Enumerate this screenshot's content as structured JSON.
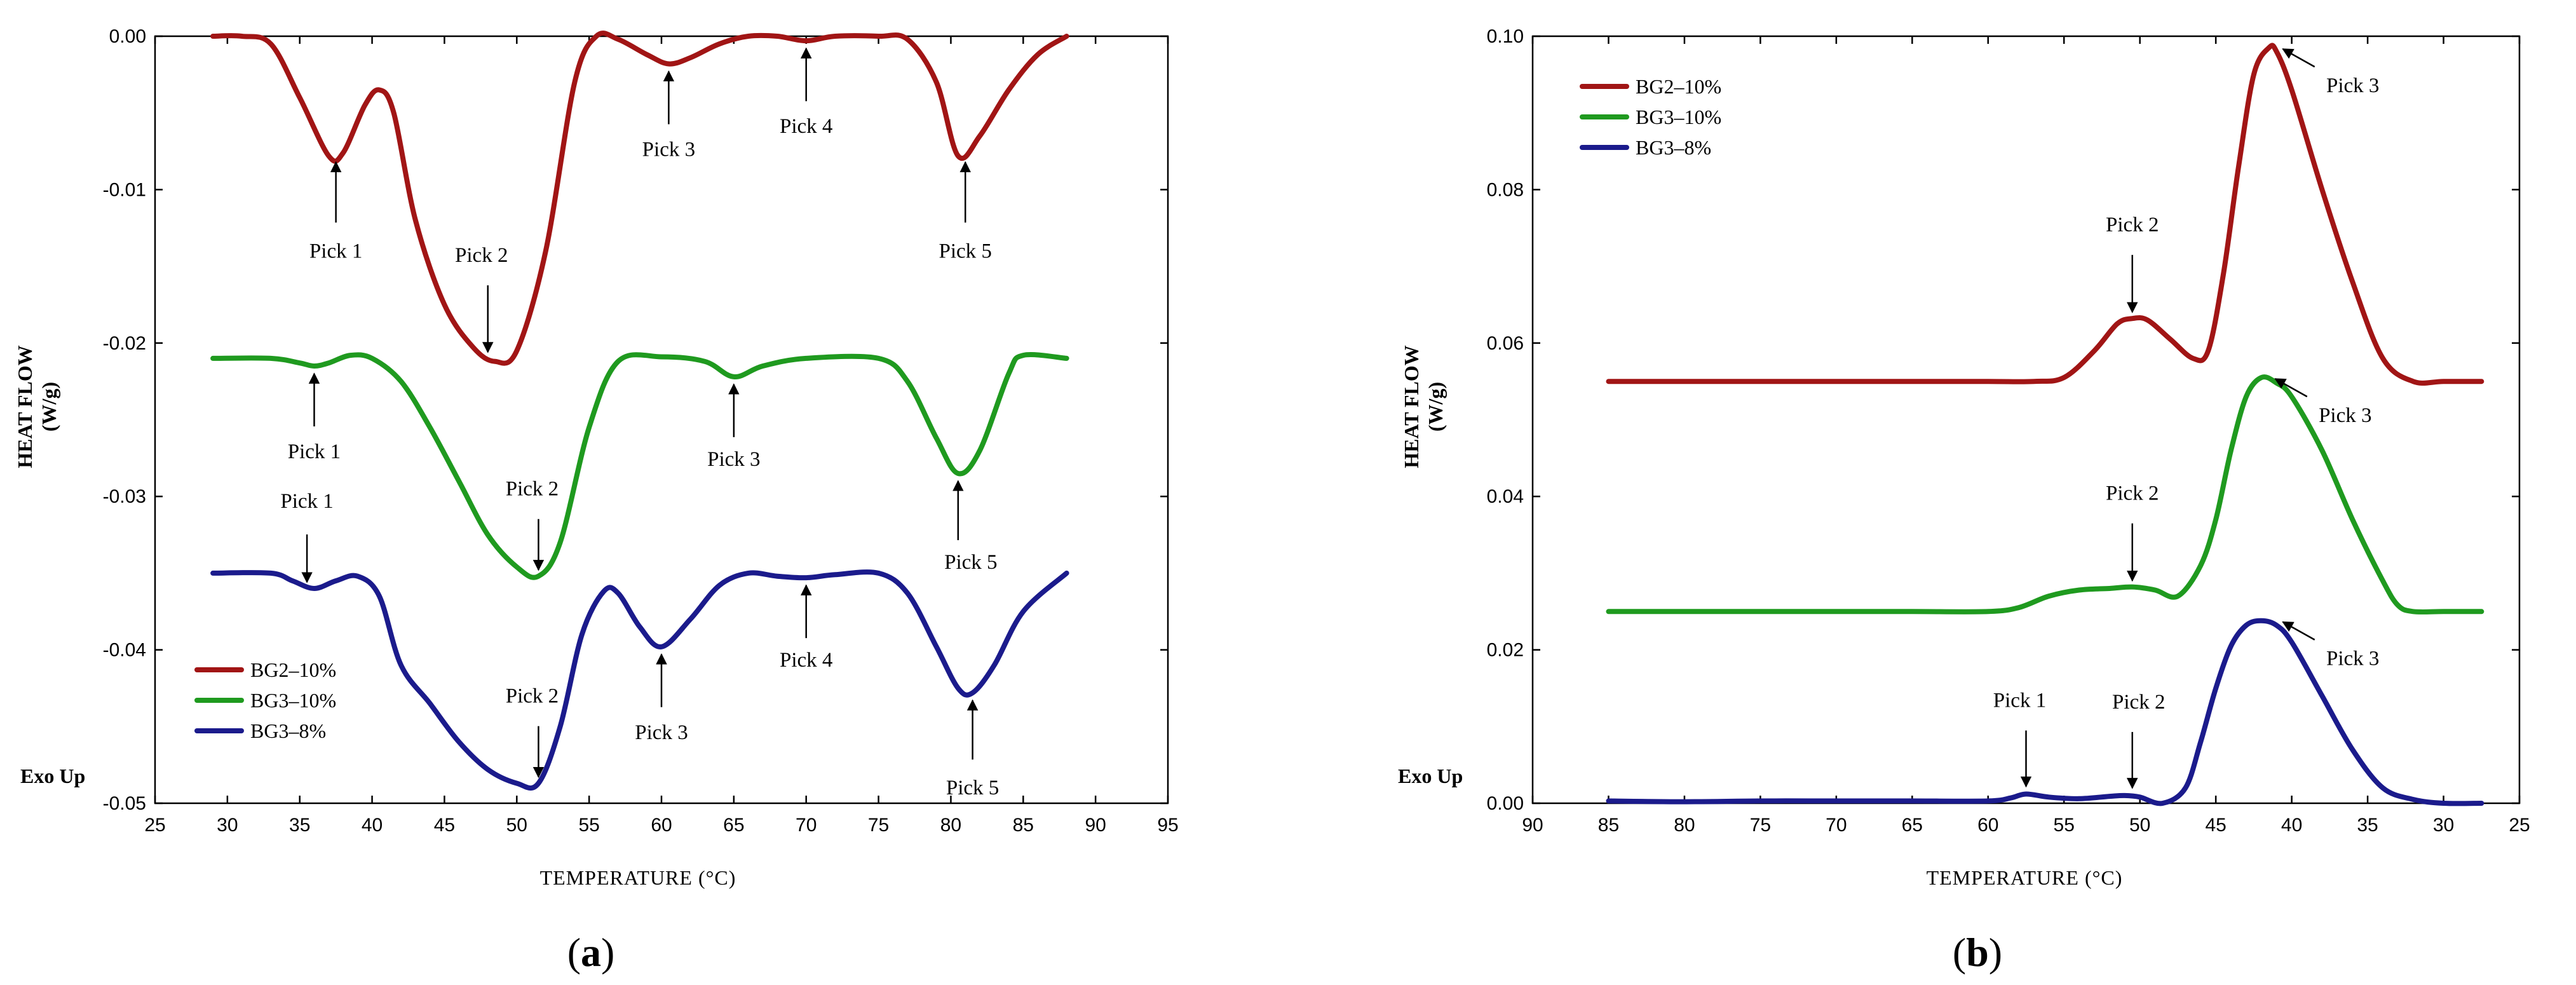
{
  "chart_data": [
    {
      "type": "line",
      "panel": "(a)",
      "panel_letter": "a",
      "xlabel": "TEMPERATURE (°C)",
      "ylabel": [
        "HEAT FLOW",
        "(W/g)"
      ],
      "exo_label": "Exo Up",
      "xlim": [
        25,
        95
      ],
      "ylim": [
        -0.05,
        0.0
      ],
      "x_ticks": [
        25,
        30,
        35,
        40,
        45,
        50,
        55,
        60,
        65,
        70,
        75,
        80,
        85,
        90,
        95
      ],
      "x_tick_labels": [
        "25",
        "30",
        "35",
        "40",
        "45",
        "50",
        "55",
        "60",
        "65",
        "70",
        "75",
        "80",
        "85",
        "90",
        "95"
      ],
      "y_ticks": [
        0.0,
        -0.01,
        -0.02,
        -0.03,
        -0.04,
        -0.05
      ],
      "y_tick_labels": [
        "0.00",
        "-0.01",
        "-0.02",
        "-0.03",
        "-0.04",
        "-0.05"
      ],
      "legend_position": "bottom-left",
      "series": [
        {
          "name": "BG2–10%",
          "color": "#a11515",
          "x": [
            29,
            31,
            33,
            35,
            37,
            38,
            39.5,
            40.5,
            41.5,
            43,
            45,
            47,
            48.5,
            50,
            52,
            54,
            55.5,
            57,
            59,
            60.5,
            62,
            64,
            66,
            68,
            70,
            72,
            75,
            77,
            79,
            80.5,
            82,
            84,
            86,
            88
          ],
          "y": [
            0,
            0,
            -0.0005,
            -0.004,
            -0.0078,
            -0.0076,
            -0.0045,
            -0.0035,
            -0.005,
            -0.012,
            -0.0175,
            -0.0203,
            -0.0212,
            -0.0205,
            -0.014,
            -0.003,
            0,
            -0.0002,
            -0.0012,
            -0.0018,
            -0.0014,
            -0.0005,
            0,
            0,
            -0.0003,
            0,
            0,
            -0.0002,
            -0.003,
            -0.0078,
            -0.0065,
            -0.0035,
            -0.0012,
            0
          ]
        },
        {
          "name": "BG3–10%",
          "color": "#1f9a1f",
          "x": [
            29,
            33,
            35,
            36,
            37,
            38.5,
            40,
            42,
            44,
            46,
            48,
            50,
            51.5,
            53,
            55,
            57,
            60,
            63,
            65,
            67,
            70,
            75,
            77,
            79,
            80.5,
            82,
            84,
            85,
            88
          ],
          "y": [
            -0.021,
            -0.021,
            -0.0213,
            -0.0215,
            -0.0213,
            -0.0208,
            -0.021,
            -0.0225,
            -0.0255,
            -0.029,
            -0.0325,
            -0.0346,
            -0.0352,
            -0.033,
            -0.0255,
            -0.0212,
            -0.0209,
            -0.0212,
            -0.0222,
            -0.0215,
            -0.021,
            -0.021,
            -0.0225,
            -0.0262,
            -0.0285,
            -0.027,
            -0.022,
            -0.0208,
            -0.021
          ]
        },
        {
          "name": "BG3–8%",
          "color": "#1b1b8c",
          "x": [
            29,
            33,
            34.5,
            36,
            37.5,
            39,
            40.5,
            42,
            44,
            46,
            48,
            50,
            51.5,
            53,
            54.5,
            56,
            57,
            58.5,
            60,
            62,
            64,
            66,
            68,
            70,
            72,
            75,
            77,
            79,
            80.5,
            81.5,
            83,
            85,
            88
          ],
          "y": [
            -0.035,
            -0.035,
            -0.0355,
            -0.036,
            -0.0355,
            -0.0352,
            -0.0365,
            -0.041,
            -0.0435,
            -0.046,
            -0.0478,
            -0.0487,
            -0.0487,
            -0.045,
            -0.039,
            -0.0362,
            -0.0363,
            -0.0385,
            -0.0398,
            -0.038,
            -0.0358,
            -0.035,
            -0.0352,
            -0.0353,
            -0.0351,
            -0.035,
            -0.0363,
            -0.0398,
            -0.0425,
            -0.0428,
            -0.041,
            -0.0375,
            -0.035
          ]
        }
      ],
      "annotations": [
        {
          "text": "Pick 1",
          "x": 37.5,
          "y": -0.0078,
          "dir": "up",
          "series": 0
        },
        {
          "text": "Pick 2",
          "x": 48.0,
          "y": -0.021,
          "dir": "down",
          "series": 0
        },
        {
          "text": "Pick 3",
          "x": 60.5,
          "y": -0.0018,
          "dir": "up",
          "series": 0
        },
        {
          "text": "Pick 4",
          "x": 70.0,
          "y": -0.0003,
          "dir": "up",
          "series": 0
        },
        {
          "text": "Pick 5",
          "x": 81.0,
          "y": -0.0078,
          "dir": "up",
          "series": 0
        },
        {
          "text": "Pick 1",
          "x": 36.0,
          "y": -0.0215,
          "dir": "up",
          "series": 1
        },
        {
          "text": "Pick 2",
          "x": 51.5,
          "y": -0.0352,
          "dir": "down",
          "series": 1
        },
        {
          "text": "Pick 3",
          "x": 65.0,
          "y": -0.0222,
          "dir": "up",
          "series": 1
        },
        {
          "text": "Pick 5",
          "x": 80.5,
          "y": -0.0285,
          "dir": "up",
          "series": 1
        },
        {
          "text": "Pick 1",
          "x": 35.5,
          "y": -0.036,
          "dir": "down",
          "series": 2
        },
        {
          "text": "Pick 2",
          "x": 51.5,
          "y": -0.0487,
          "dir": "down",
          "series": 2
        },
        {
          "text": "Pick 3",
          "x": 60.0,
          "y": -0.0398,
          "dir": "up",
          "series": 2
        },
        {
          "text": "Pick 4",
          "x": 70.0,
          "y": -0.0353,
          "dir": "up",
          "series": 2
        },
        {
          "text": "Pick 5",
          "x": 81.5,
          "y": -0.0428,
          "dir": "up",
          "series": 2
        }
      ]
    },
    {
      "type": "line",
      "panel": "(b)",
      "panel_letter": "b",
      "xlabel": "TEMPERATURE (°C)",
      "ylabel": [
        "HEAT FLOW",
        "(W/g)"
      ],
      "exo_label": "Exo Up",
      "xlim": [
        90,
        25
      ],
      "x_reversed": true,
      "ylim": [
        0.0,
        0.1
      ],
      "x_ticks": [
        90,
        85,
        80,
        75,
        70,
        65,
        60,
        55,
        50,
        45,
        40,
        35,
        30,
        25
      ],
      "x_tick_labels": [
        "90",
        "85",
        "80",
        "75",
        "70",
        "65",
        "60",
        "55",
        "50",
        "45",
        "40",
        "35",
        "30",
        "25"
      ],
      "y_ticks": [
        0.0,
        0.02,
        0.04,
        0.06,
        0.08,
        0.1
      ],
      "y_tick_labels": [
        "0.00",
        "0.02",
        "0.04",
        "0.06",
        "0.08",
        "0.10"
      ],
      "legend_position": "top-left",
      "series": [
        {
          "name": "BG2–10%",
          "color": "#a11515",
          "x": [
            85,
            80,
            75,
            70,
            65,
            60,
            57,
            55,
            53,
            51.5,
            50.5,
            49.5,
            48,
            46.5,
            45.5,
            44.5,
            43.5,
            42.5,
            41.5,
            41,
            40,
            38,
            36,
            34,
            32,
            30,
            27.5
          ],
          "y": [
            0.055,
            0.055,
            0.055,
            0.055,
            0.055,
            0.055,
            0.055,
            0.0555,
            0.059,
            0.0625,
            0.0632,
            0.063,
            0.0605,
            0.058,
            0.059,
            0.069,
            0.083,
            0.095,
            0.0985,
            0.098,
            0.093,
            0.08,
            0.068,
            0.058,
            0.055,
            0.055,
            0.055
          ]
        },
        {
          "name": "BG3–10%",
          "color": "#1f9a1f",
          "x": [
            85,
            80,
            75,
            70,
            65,
            60,
            58,
            56,
            54,
            52,
            50.5,
            49,
            47.5,
            46,
            45,
            44,
            43,
            42,
            41,
            40,
            38,
            36,
            34,
            33,
            32,
            30,
            27.5
          ],
          "y": [
            0.025,
            0.025,
            0.025,
            0.025,
            0.025,
            0.025,
            0.0255,
            0.027,
            0.0278,
            0.028,
            0.0282,
            0.0278,
            0.027,
            0.031,
            0.037,
            0.046,
            0.053,
            0.0555,
            0.0548,
            0.053,
            0.046,
            0.037,
            0.029,
            0.0258,
            0.025,
            0.025,
            0.025
          ]
        },
        {
          "name": "BG3–8%",
          "color": "#1b1b8c",
          "x": [
            85,
            80,
            75,
            70,
            65,
            60,
            58.5,
            57.5,
            56,
            54,
            52,
            51,
            50,
            48.5,
            47,
            46,
            45,
            44,
            43,
            42,
            41,
            40,
            38,
            36,
            34,
            32,
            30,
            27.5
          ],
          "y": [
            0.0003,
            0.0002,
            0.0003,
            0.0003,
            0.0003,
            0.0003,
            0.0007,
            0.0012,
            0.0008,
            0.0006,
            0.0009,
            0.001,
            0.0008,
            0.0,
            0.002,
            0.008,
            0.015,
            0.0205,
            0.0232,
            0.0238,
            0.0232,
            0.021,
            0.014,
            0.007,
            0.002,
            0.0005,
            0.0,
            0.0
          ]
        }
      ],
      "annotations": [
        {
          "text": "Pick 2",
          "x": 50.5,
          "y": 0.0632,
          "dir": "down",
          "series": 0
        },
        {
          "text": "Pick 3",
          "x": 41.0,
          "y": 0.0985,
          "dir": "diag",
          "series": 0
        },
        {
          "text": "Pick 2",
          "x": 50.5,
          "y": 0.0282,
          "dir": "down",
          "series": 1
        },
        {
          "text": "Pick 3",
          "x": 41.5,
          "y": 0.0555,
          "dir": "diag",
          "series": 1
        },
        {
          "text": "Pick 1",
          "x": 57.5,
          "y": 0.0012,
          "dir": "down",
          "series": 2
        },
        {
          "text": "Pick 2",
          "x": 50.5,
          "y": 0.001,
          "dir": "down",
          "series": 2
        },
        {
          "text": "Pick 3",
          "x": 41.0,
          "y": 0.0238,
          "dir": "diag",
          "series": 2
        }
      ]
    }
  ]
}
